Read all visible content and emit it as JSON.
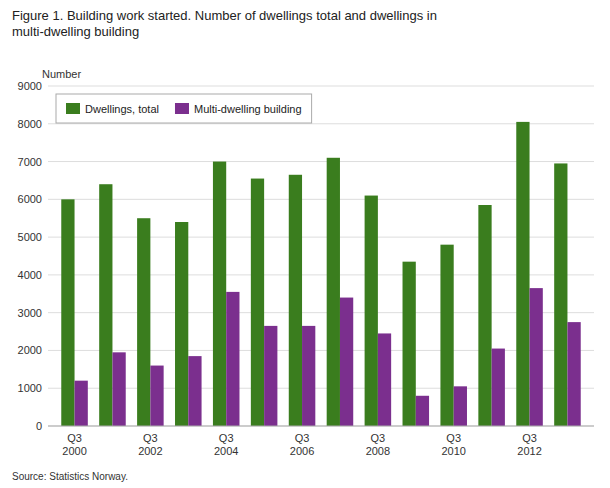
{
  "chart_data": {
    "type": "bar",
    "title": "Figure 1. Building work started. Number of dwellings total and dwellings in\nmulti-dwelling building",
    "ylabel": "Number",
    "source": "Source: Statistics Norway.",
    "categories": [
      "Q3\n2000",
      null,
      "Q3\n2002",
      null,
      "Q3\n2004",
      null,
      "Q3\n2006",
      null,
      "Q3\n2008",
      null,
      "Q3\n2010",
      null,
      "Q3\n2012",
      null
    ],
    "series": [
      {
        "name": "Dwellings, total",
        "color": "#3a7d1e",
        "values": [
          6000,
          6400,
          5500,
          5400,
          7000,
          6550,
          6650,
          7100,
          6100,
          4350,
          4800,
          5850,
          8050,
          6950
        ]
      },
      {
        "name": "Multi-dwelling building",
        "color": "#7b2f8e",
        "values": [
          1200,
          1950,
          1600,
          1850,
          3550,
          2650,
          2650,
          3400,
          2450,
          800,
          1050,
          2050,
          3650,
          2750
        ]
      }
    ],
    "ylim": [
      0,
      9000
    ],
    "yticks": [
      0,
      1000,
      2000,
      3000,
      4000,
      5000,
      6000,
      7000,
      8000,
      9000
    ],
    "grid": true,
    "legend": "upper left"
  }
}
